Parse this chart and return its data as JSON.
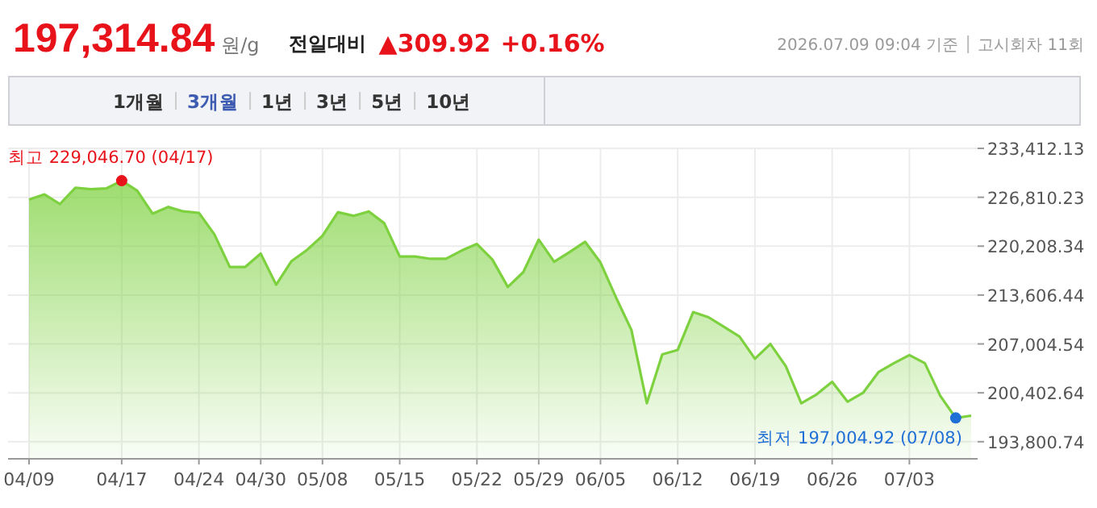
{
  "chart_data": {
    "type": "area",
    "title": "197,314.84",
    "subtitle": "원/g",
    "categories": [
      "04/09",
      null,
      null,
      null,
      null,
      null,
      "04/17",
      null,
      null,
      null,
      null,
      "04/24",
      null,
      null,
      null,
      "04/30",
      null,
      null,
      null,
      "05/08",
      null,
      null,
      null,
      null,
      "05/15",
      null,
      null,
      null,
      null,
      "05/22",
      null,
      null,
      null,
      "05/29",
      null,
      null,
      null,
      "06/05",
      null,
      null,
      null,
      null,
      "06/12",
      null,
      null,
      null,
      null,
      "06/19",
      null,
      null,
      null,
      null,
      "06/26",
      null,
      null,
      null,
      null,
      "07/03",
      null,
      null,
      null,
      null
    ],
    "series": [
      {
        "color": "#7dd13f",
        "values": [
          226500,
          227200,
          225900,
          228100,
          227900,
          228000,
          229046.7,
          227700,
          224600,
          225500,
          224900,
          224700,
          221800,
          217400,
          217400,
          219200,
          215000,
          218200,
          219700,
          221600,
          224800,
          224300,
          224900,
          223300,
          218800,
          218800,
          218500,
          218500,
          219600,
          220500,
          218400,
          214700,
          216700,
          221100,
          218100,
          219400,
          220800,
          218000,
          213300,
          208900,
          199000,
          205600,
          206200,
          211300,
          210600,
          209300,
          208000,
          205000,
          207000,
          204000,
          199000,
          200200,
          201900,
          199200,
          200400,
          203200,
          204400,
          205500,
          204400,
          200000,
          197004.92,
          197314.84
        ]
      }
    ],
    "ylim": [
      191600,
      233412.13
    ],
    "yticks": [
      {
        "value": 193800.74,
        "label": "193,800.74"
      },
      {
        "value": 200402.64,
        "label": "200,402.64"
      },
      {
        "value": 207004.54,
        "label": "207,004.54"
      },
      {
        "value": 213606.44,
        "label": "213,606.44"
      },
      {
        "value": 220208.34,
        "label": "220,208.34"
      },
      {
        "value": 226810.23,
        "label": "226,810.23"
      },
      {
        "value": 233412.13,
        "label": "233,412.13"
      }
    ],
    "grid": true,
    "annotations": [
      "전일대비",
      "▲309.92",
      "+0.16%",
      "2026.07.09 09:04 기준",
      "고시회차 11회",
      "1개월",
      "3개월",
      "1년",
      "3년",
      "5년",
      "10년",
      "최고 229,046.70 (04/17)",
      "최저 197,004.92 (07/08)"
    ]
  }
}
